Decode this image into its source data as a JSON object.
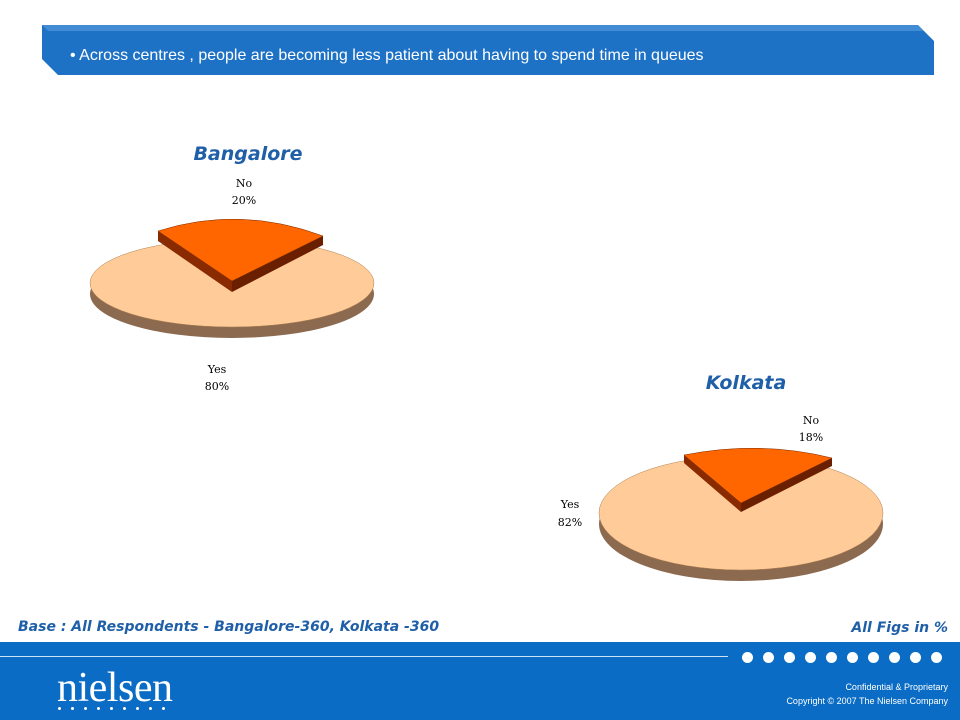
{
  "banner": {
    "text": "• Across centres , people are becoming less patient about having to spend time in queues"
  },
  "chart_data": [
    {
      "type": "pie",
      "title": "Bangalore",
      "categories": [
        "No",
        "Yes"
      ],
      "values": [
        20,
        80
      ],
      "labels": [
        "20%",
        "80%"
      ],
      "colors": {
        "No": "#ff6600",
        "Yes": "#ffcc99"
      }
    },
    {
      "type": "pie",
      "title": "Kolkata",
      "categories": [
        "No",
        "Yes"
      ],
      "values": [
        18,
        82
      ],
      "labels": [
        "18%",
        "82%"
      ],
      "colors": {
        "No": "#ff6600",
        "Yes": "#ffcc99"
      }
    }
  ],
  "notes": {
    "base": "Base : All Respondents -  Bangalore-360, Kolkata -360",
    "figs": "All Figs in %"
  },
  "footer": {
    "logo": "nielsen",
    "confidential": "Confidential & Proprietary",
    "copyright": "Copyright © 2007 The Nielsen Company"
  }
}
